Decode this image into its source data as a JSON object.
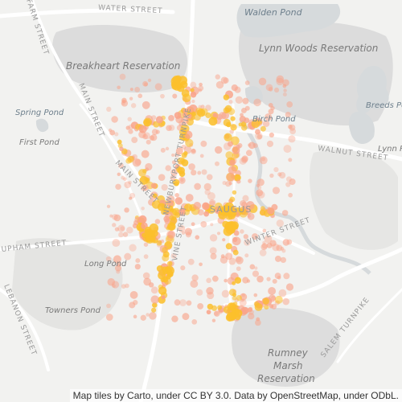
{
  "map": {
    "attribution": "Map tiles by Carto, under CC BY 3.0. Data by OpenStreetMap, under ODbL.",
    "colors": {
      "background": "#f2f2f0",
      "water": "#d6dadc",
      "park": "#dcdcdc",
      "road": "#ffffff",
      "heat_low": "#f9a48a",
      "heat_high": "#fbbf2b"
    },
    "labels": {
      "walden_pond": "Walden Pond",
      "lynn_woods": "Lynn Woods Reservation",
      "breakheart": "Breakheart Reservation",
      "spring_pond": "Spring Pond",
      "first_pond": "First Pond",
      "birch_pond": "Birch Pond",
      "breeds_pond": "Breeds Po",
      "lynn_res": "Lynn Re",
      "saugus": "SAUGUS",
      "long_pond": "Long Pond",
      "towners_pond": "Towners Pond",
      "rumney_1": "Rumney",
      "rumney_2": "Marsh",
      "rumney_3": "Reservation"
    },
    "streets": {
      "water_street": "WATER STREET",
      "farm_street": "FARM STREET",
      "main_street_1": "MAIN STREET",
      "main_street_2": "MAIN STREET",
      "walnut_street": "WALNUT STREET",
      "newburyport": "NEWBURYPORT TURNPIKE",
      "upham_street": "UPHAM STREET",
      "vine_street": "VINE STREET",
      "winter_street": "WINTER STREET",
      "lebanon_street": "LEBANON STREET",
      "salem_turnpike": "SALEM TURNPIKE"
    }
  }
}
